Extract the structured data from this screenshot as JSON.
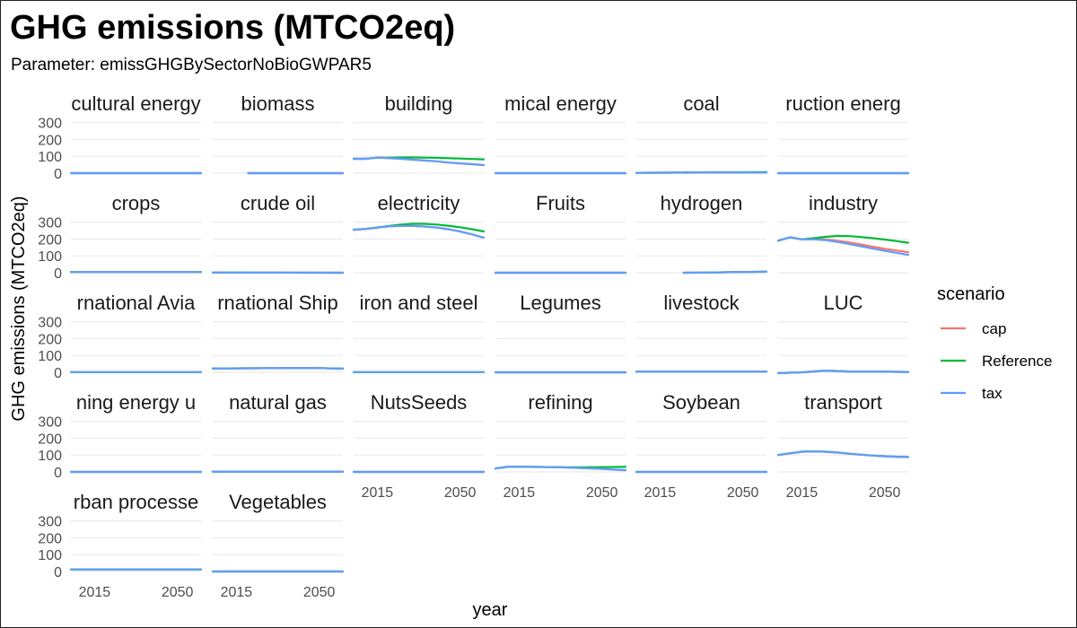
{
  "chart_data": {
    "type": "line",
    "title": "GHG emissions (MTCO2eq)",
    "subtitle": "Parameter: emissGHGBySectorNoBioGWPAR5",
    "xlabel": "year",
    "ylabel": "GHG emissions (MTCO2eq)",
    "xlim": [
      2005,
      2060
    ],
    "ylim": [
      0,
      330
    ],
    "x_ticks": [
      "2015",
      "2050"
    ],
    "y_ticks": [
      "0",
      "100",
      "200",
      "300"
    ],
    "x_tick_values": [
      2015,
      2050
    ],
    "y_tick_values": [
      0,
      100,
      200,
      300
    ],
    "grid": true,
    "legend": {
      "title": "scenario",
      "placement": "right",
      "entries": [
        {
          "name": "cap",
          "color": "#F8766D"
        },
        {
          "name": "Reference",
          "color": "#00BA38"
        },
        {
          "name": "tax",
          "color": "#619CFF"
        }
      ]
    },
    "panels": [
      {
        "label": "cultural energy",
        "x": [
          2005,
          2060
        ],
        "series": {
          "cap": [
            0,
            0
          ],
          "Reference": [
            0,
            0
          ],
          "tax": [
            0,
            0
          ]
        }
      },
      {
        "label": "biomass",
        "x": [
          2020,
          2060
        ],
        "series": {
          "cap": [
            0,
            0
          ],
          "Reference": [
            0,
            0
          ],
          "tax": [
            0,
            0
          ]
        }
      },
      {
        "label": "building",
        "x": [
          2005,
          2010,
          2015,
          2020,
          2025,
          2030,
          2035,
          2040,
          2045,
          2050,
          2055,
          2060
        ],
        "series": {
          "cap": [
            85,
            85,
            92,
            89,
            85,
            80,
            75,
            70,
            63,
            58,
            53,
            48
          ],
          "Reference": [
            85,
            85,
            92,
            92,
            93,
            93,
            92,
            91,
            89,
            87,
            84,
            82
          ],
          "tax": [
            85,
            85,
            92,
            89,
            85,
            80,
            75,
            70,
            63,
            58,
            53,
            48
          ]
        }
      },
      {
        "label": "mical energy",
        "x": [
          2005,
          2060
        ],
        "series": {
          "cap": [
            0,
            0
          ],
          "Reference": [
            0,
            0
          ],
          "tax": [
            0,
            0
          ]
        }
      },
      {
        "label": "coal",
        "x": [
          2005,
          2015,
          2030,
          2045,
          2060
        ],
        "series": {
          "cap": [
            2,
            2,
            3,
            3,
            3
          ],
          "Reference": [
            2,
            3,
            4,
            5,
            6
          ],
          "tax": [
            2,
            2,
            3,
            3,
            3
          ]
        }
      },
      {
        "label": "ruction energ",
        "x": [
          2005,
          2060
        ],
        "series": {
          "cap": [
            0,
            0
          ],
          "Reference": [
            0,
            0
          ],
          "tax": [
            0,
            0
          ]
        }
      },
      {
        "label": "crops",
        "x": [
          2005,
          2060
        ],
        "series": {
          "cap": [
            5,
            5
          ],
          "Reference": [
            5,
            5
          ],
          "tax": [
            5,
            5
          ]
        }
      },
      {
        "label": "crude oil",
        "x": [
          2005,
          2060
        ],
        "series": {
          "cap": [
            1,
            0
          ],
          "Reference": [
            1,
            0
          ],
          "tax": [
            1,
            0
          ]
        }
      },
      {
        "label": "electricity",
        "x": [
          2005,
          2010,
          2015,
          2020,
          2025,
          2030,
          2035,
          2040,
          2045,
          2050,
          2055,
          2060
        ],
        "series": {
          "cap": [
            255,
            260,
            268,
            275,
            278,
            278,
            274,
            268,
            258,
            245,
            228,
            208
          ],
          "Reference": [
            255,
            260,
            268,
            278,
            286,
            290,
            290,
            286,
            279,
            270,
            258,
            245
          ],
          "tax": [
            255,
            260,
            268,
            275,
            278,
            278,
            274,
            268,
            258,
            245,
            228,
            208
          ]
        }
      },
      {
        "label": "Fruits",
        "x": [
          2005,
          2060
        ],
        "series": {
          "cap": [
            0,
            0
          ],
          "Reference": [
            0,
            0
          ],
          "tax": [
            0,
            0
          ]
        }
      },
      {
        "label": "hydrogen",
        "x": [
          2025,
          2035,
          2045,
          2060
        ],
        "series": {
          "cap": [
            0,
            1,
            3,
            6
          ],
          "Reference": [
            0,
            1,
            3,
            6
          ],
          "tax": [
            0,
            1,
            3,
            6
          ]
        }
      },
      {
        "label": "industry",
        "x": [
          2005,
          2010,
          2015,
          2020,
          2025,
          2030,
          2035,
          2040,
          2045,
          2050,
          2055,
          2060
        ],
        "series": {
          "cap": [
            190,
            210,
            198,
            200,
            198,
            190,
            180,
            168,
            155,
            142,
            132,
            122
          ],
          "Reference": [
            190,
            210,
            198,
            205,
            213,
            218,
            217,
            212,
            205,
            197,
            188,
            178
          ],
          "tax": [
            190,
            210,
            198,
            198,
            193,
            183,
            170,
            157,
            143,
            130,
            118,
            106
          ]
        }
      },
      {
        "label": "rnational Avia",
        "x": [
          2005,
          2060
        ],
        "series": {
          "cap": [
            1,
            1
          ],
          "Reference": [
            1,
            1
          ],
          "tax": [
            1,
            1
          ]
        }
      },
      {
        "label": "rnational Ship",
        "x": [
          2005,
          2020,
          2035,
          2050,
          2060
        ],
        "series": {
          "cap": [
            23,
            24,
            25,
            25,
            22
          ],
          "Reference": [
            23,
            24,
            25,
            25,
            22
          ],
          "tax": [
            23,
            24,
            25,
            25,
            22
          ]
        }
      },
      {
        "label": "iron and steel",
        "x": [
          2005,
          2060
        ],
        "series": {
          "cap": [
            1,
            1
          ],
          "Reference": [
            1,
            1
          ],
          "tax": [
            1,
            1
          ]
        }
      },
      {
        "label": "Legumes",
        "x": [
          2005,
          2060
        ],
        "series": {
          "cap": [
            0,
            0
          ],
          "Reference": [
            0,
            0
          ],
          "tax": [
            0,
            0
          ]
        }
      },
      {
        "label": "livestock",
        "x": [
          2005,
          2060
        ],
        "series": {
          "cap": [
            5,
            5
          ],
          "Reference": [
            5,
            5
          ],
          "tax": [
            5,
            5
          ]
        }
      },
      {
        "label": "LUC",
        "x": [
          2005,
          2015,
          2025,
          2035,
          2045,
          2060
        ],
        "series": {
          "cap": [
            -5,
            0,
            10,
            5,
            5,
            2
          ],
          "Reference": [
            -5,
            0,
            10,
            5,
            5,
            2
          ],
          "tax": [
            -5,
            0,
            10,
            5,
            5,
            2
          ]
        }
      },
      {
        "label": "ning energy u",
        "x": [
          2005,
          2060
        ],
        "series": {
          "cap": [
            0,
            0
          ],
          "Reference": [
            0,
            0
          ],
          "tax": [
            0,
            0
          ]
        }
      },
      {
        "label": "natural gas",
        "x": [
          2005,
          2060
        ],
        "series": {
          "cap": [
            2,
            2
          ],
          "Reference": [
            2,
            2
          ],
          "tax": [
            2,
            2
          ]
        }
      },
      {
        "label": "NutsSeeds",
        "x": [
          2005,
          2060
        ],
        "series": {
          "cap": [
            0,
            0
          ],
          "Reference": [
            0,
            0
          ],
          "tax": [
            0,
            0
          ]
        }
      },
      {
        "label": "refining",
        "x": [
          2005,
          2010,
          2020,
          2030,
          2040,
          2050,
          2060
        ],
        "series": {
          "cap": [
            20,
            30,
            30,
            28,
            24,
            18,
            10
          ],
          "Reference": [
            20,
            30,
            30,
            28,
            27,
            28,
            30
          ],
          "tax": [
            20,
            30,
            30,
            28,
            24,
            18,
            10
          ]
        }
      },
      {
        "label": "Soybean",
        "x": [
          2005,
          2060
        ],
        "series": {
          "cap": [
            0,
            0
          ],
          "Reference": [
            0,
            0
          ],
          "tax": [
            0,
            0
          ]
        }
      },
      {
        "label": "transport",
        "x": [
          2005,
          2010,
          2015,
          2020,
          2025,
          2030,
          2035,
          2040,
          2045,
          2050,
          2055,
          2060
        ],
        "series": {
          "cap": [
            100,
            110,
            120,
            122,
            120,
            115,
            108,
            102,
            97,
            93,
            90,
            88
          ],
          "Reference": [
            100,
            110,
            120,
            122,
            120,
            115,
            108,
            102,
            97,
            93,
            90,
            88
          ],
          "tax": [
            100,
            110,
            120,
            122,
            120,
            115,
            108,
            102,
            97,
            93,
            90,
            88
          ]
        }
      },
      {
        "label": "rban processe",
        "x": [
          2005,
          2060
        ],
        "series": {
          "cap": [
            12,
            12
          ],
          "Reference": [
            12,
            12
          ],
          "tax": [
            12,
            12
          ]
        }
      },
      {
        "label": "Vegetables",
        "x": [
          2005,
          2060
        ],
        "series": {
          "cap": [
            0,
            0
          ],
          "Reference": [
            0,
            0
          ],
          "tax": [
            0,
            0
          ]
        }
      }
    ]
  }
}
